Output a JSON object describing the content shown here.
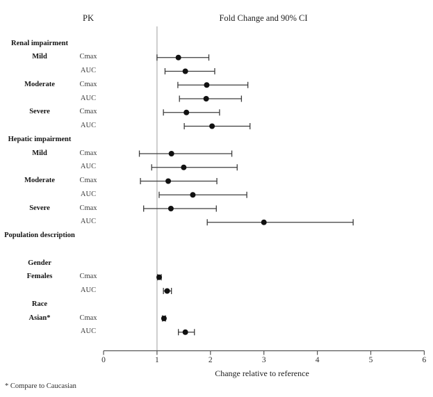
{
  "header": {
    "pk_column_label": "PK",
    "chart_title": "Fold Change and 90% CI"
  },
  "footnote": "* Compare to Caucasian",
  "colors": {
    "reference_line": "#b9b9b9",
    "whisker": "#3c3c3c",
    "marker": "#111111",
    "axis": "#555555"
  },
  "chart_data": {
    "type": "forest",
    "title": "Fold Change and 90% CI",
    "pk_column": "PK",
    "xlabel": "Change relative to reference",
    "xlim": [
      0,
      6
    ],
    "xticks": [
      "0",
      "1",
      "2",
      "3",
      "4",
      "5",
      "6"
    ],
    "reference_value": 1,
    "ci_level": "90%",
    "items": [
      {
        "kind": "section",
        "label": "Renal impairment"
      },
      {
        "kind": "row",
        "group": "Mild",
        "param": "Cmax",
        "value": 1.4,
        "lo": 1.0,
        "hi": 1.97
      },
      {
        "kind": "row",
        "group": "",
        "param": "AUC",
        "value": 1.53,
        "lo": 1.15,
        "hi": 2.08
      },
      {
        "kind": "row",
        "group": "Moderate",
        "param": "Cmax",
        "value": 1.93,
        "lo": 1.39,
        "hi": 2.7
      },
      {
        "kind": "row",
        "group": "",
        "param": "AUC",
        "value": 1.92,
        "lo": 1.42,
        "hi": 2.58
      },
      {
        "kind": "row",
        "group": "Severe",
        "param": "Cmax",
        "value": 1.55,
        "lo": 1.12,
        "hi": 2.17
      },
      {
        "kind": "row",
        "group": "",
        "param": "AUC",
        "value": 2.03,
        "lo": 1.51,
        "hi": 2.74
      },
      {
        "kind": "section",
        "label": "Hepatic impairment"
      },
      {
        "kind": "row",
        "group": "Mild",
        "param": "Cmax",
        "value": 1.27,
        "lo": 0.67,
        "hi": 2.4
      },
      {
        "kind": "row",
        "group": "",
        "param": "AUC",
        "value": 1.5,
        "lo": 0.9,
        "hi": 2.5
      },
      {
        "kind": "row",
        "group": "Moderate",
        "param": "Cmax",
        "value": 1.21,
        "lo": 0.69,
        "hi": 2.12
      },
      {
        "kind": "row",
        "group": "",
        "param": "AUC",
        "value": 1.67,
        "lo": 1.04,
        "hi": 2.68
      },
      {
        "kind": "row",
        "group": "Severe",
        "param": "Cmax",
        "value": 1.26,
        "lo": 0.75,
        "hi": 2.11
      },
      {
        "kind": "row",
        "group": "",
        "param": "AUC",
        "value": 3.0,
        "lo": 1.94,
        "hi": 4.67
      },
      {
        "kind": "section",
        "label": "Population description"
      },
      {
        "kind": "spacer"
      },
      {
        "kind": "section",
        "label": "Gender"
      },
      {
        "kind": "row",
        "group": "Females",
        "param": "Cmax",
        "value": 1.04,
        "lo": 1.01,
        "hi": 1.08
      },
      {
        "kind": "row",
        "group": "",
        "param": "AUC",
        "value": 1.19,
        "lo": 1.12,
        "hi": 1.27
      },
      {
        "kind": "section",
        "label": "Race"
      },
      {
        "kind": "row",
        "group": "Asian*",
        "param": "Cmax",
        "value": 1.13,
        "lo": 1.1,
        "hi": 1.16
      },
      {
        "kind": "row",
        "group": "",
        "param": "AUC",
        "value": 1.53,
        "lo": 1.4,
        "hi": 1.7
      }
    ]
  }
}
